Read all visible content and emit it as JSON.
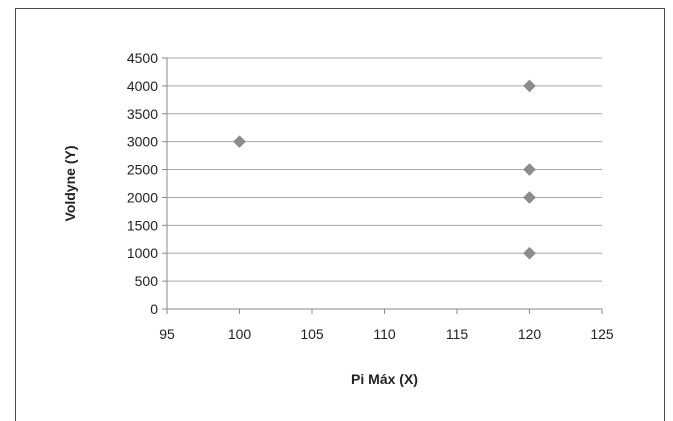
{
  "chart_data": {
    "type": "scatter",
    "title": "",
    "xlabel": "Pi Máx (X)",
    "ylabel": "Voldyne (Y)",
    "xlim": [
      95,
      125
    ],
    "ylim": [
      0,
      4500
    ],
    "xticks": [
      95,
      100,
      105,
      110,
      115,
      120,
      125
    ],
    "yticks": [
      0,
      500,
      1000,
      1500,
      2000,
      2500,
      3000,
      3500,
      4000,
      4500
    ],
    "grid": "horizontal",
    "legend": "none",
    "marker": "diamond",
    "marker_color": "#8c8c8c",
    "points": [
      {
        "x": 100,
        "y": 3000
      },
      {
        "x": 120,
        "y": 4000
      },
      {
        "x": 120,
        "y": 2500
      },
      {
        "x": 120,
        "y": 2000
      },
      {
        "x": 120,
        "y": 1000
      }
    ]
  }
}
